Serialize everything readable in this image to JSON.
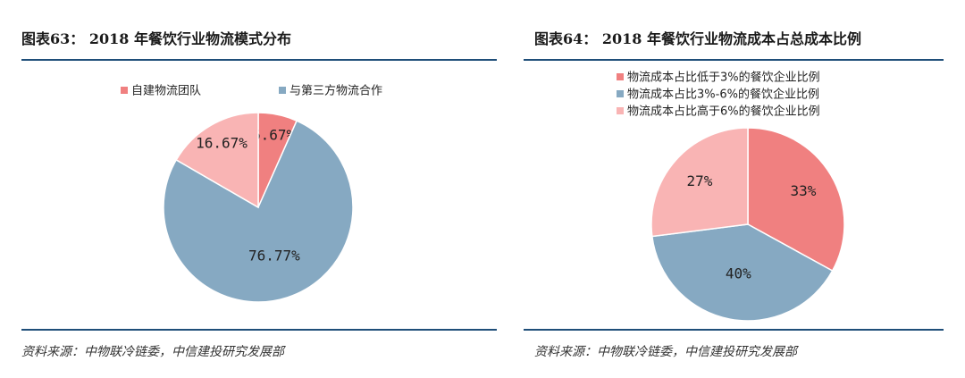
{
  "left": {
    "title": "图表63： 2018 年餐饮行业物流模式分布",
    "source": "资料来源：中物联冷链委，中信建投研究发展部",
    "chart_data": {
      "type": "pie",
      "title": "",
      "start_angle": 0,
      "series": [
        {
          "name": "自建物流团队",
          "value": 6.67,
          "label": "6.67%",
          "color": "#f08080"
        },
        {
          "name": "与第三方物流合作",
          "value": 76.77,
          "label": "76.77%",
          "color": "#86a9c2"
        },
        {
          "name": "",
          "value": 16.67,
          "label": "16.67%",
          "color": "#f9b4b4"
        }
      ],
      "legend": {
        "placement": "top",
        "entries": [
          "自建物流团队",
          "与第三方物流合作"
        ]
      }
    }
  },
  "right": {
    "title": "图表64： 2018 年餐饮行业物流成本占总成本比例",
    "source": "资料来源：中物联冷链委，中信建投研究发展部",
    "chart_data": {
      "type": "pie",
      "title": "",
      "start_angle": 0,
      "series": [
        {
          "name": "物流成本占比低于3%的餐饮企业比例",
          "value": 33,
          "label": "33%",
          "color": "#f08080"
        },
        {
          "name": "物流成本占比3%-6%的餐饮企业比例",
          "value": 40,
          "label": "40%",
          "color": "#86a9c2"
        },
        {
          "name": "物流成本占比高于6%的餐饮企业比例",
          "value": 27,
          "label": "27%",
          "color": "#f9b4b4"
        }
      ],
      "legend": {
        "placement": "top-left",
        "entries": [
          "物流成本占比低于3%的餐饮企业比例",
          "物流成本占比3%-6%的餐饮企业比例",
          "物流成本占比高于6%的餐饮企业比例"
        ]
      }
    }
  }
}
